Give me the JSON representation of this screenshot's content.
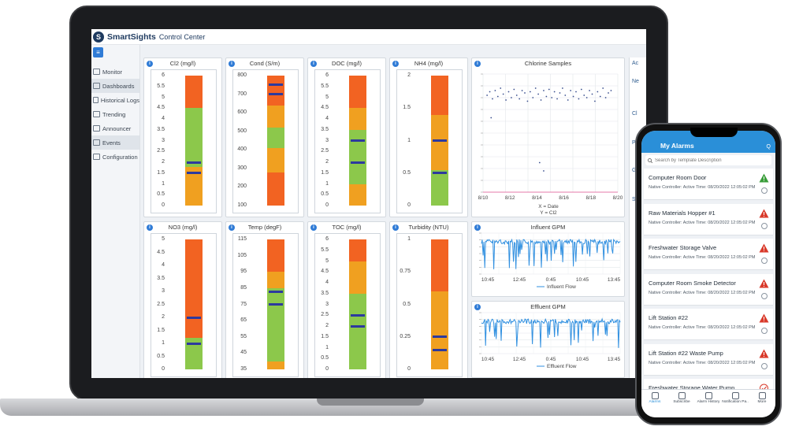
{
  "header": {
    "logo_letter": "S",
    "brand": "SmartSights",
    "title": "Control Center"
  },
  "sidebar": {
    "toggle_icon": "menu-icon",
    "items": [
      {
        "label": "Monitor",
        "active": false
      },
      {
        "label": "Dashboards",
        "active": true
      },
      {
        "label": "Historical Logs",
        "active": false
      },
      {
        "label": "Trending",
        "active": false
      },
      {
        "label": "Announcer",
        "active": false
      },
      {
        "label": "Events",
        "active": true
      },
      {
        "label": "Configuration",
        "active": false
      }
    ]
  },
  "gauges": [
    {
      "title": "Cl2 (mg/l)",
      "ticks": [
        "6",
        "5.5",
        "5",
        "4.5",
        "4",
        "3.5",
        "3",
        "2.5",
        "2",
        "1.5",
        "1",
        "0.5",
        "0"
      ],
      "min": 0,
      "max": 6,
      "segments": [
        {
          "from": 0,
          "to": 1.8,
          "color": "#f0a020"
        },
        {
          "from": 1.8,
          "to": 4.5,
          "color": "#8cc84b"
        },
        {
          "from": 4.5,
          "to": 6,
          "color": "#f26322"
        }
      ],
      "markers": [
        2.0,
        1.5
      ]
    },
    {
      "title": "Cond (S/m)",
      "ticks": [
        "800",
        "700",
        "600",
        "500",
        "400",
        "300",
        "200",
        "100"
      ],
      "min": 100,
      "max": 800,
      "segments": [
        {
          "from": 100,
          "to": 280,
          "color": "#f26322"
        },
        {
          "from": 280,
          "to": 410,
          "color": "#f0a020"
        },
        {
          "from": 410,
          "to": 520,
          "color": "#8cc84b"
        },
        {
          "from": 520,
          "to": 640,
          "color": "#f0a020"
        },
        {
          "from": 640,
          "to": 800,
          "color": "#f26322"
        }
      ],
      "markers": [
        750,
        700
      ]
    },
    {
      "title": "DOC (mg/l)",
      "ticks": [
        "6",
        "5.5",
        "5",
        "4.5",
        "4",
        "3.5",
        "3",
        "2.5",
        "2",
        "1.5",
        "1",
        "0.5",
        "0"
      ],
      "min": 0,
      "max": 6,
      "segments": [
        {
          "from": 0,
          "to": 1.0,
          "color": "#f0a020"
        },
        {
          "from": 1.0,
          "to": 3.5,
          "color": "#8cc84b"
        },
        {
          "from": 3.5,
          "to": 4.5,
          "color": "#f0a020"
        },
        {
          "from": 4.5,
          "to": 6,
          "color": "#f26322"
        }
      ],
      "markers": [
        3.0,
        2.0
      ]
    },
    {
      "title": "NH4 (mg/l)",
      "ticks": [
        "2",
        "1.5",
        "1",
        "0.5",
        "0"
      ],
      "min": 0,
      "max": 2,
      "segments": [
        {
          "from": 0,
          "to": 0.55,
          "color": "#8cc84b"
        },
        {
          "from": 0.55,
          "to": 0.95,
          "color": "#f0a020"
        },
        {
          "from": 0.95,
          "to": 1.4,
          "color": "#f0a020"
        },
        {
          "from": 1.4,
          "to": 2,
          "color": "#f26322"
        }
      ],
      "markers": [
        1.0,
        0.5
      ]
    },
    {
      "title": "NO3 (mg/l)",
      "ticks": [
        "5",
        "4.5",
        "4",
        "3.5",
        "3",
        "2.5",
        "2",
        "1.5",
        "1",
        "0.5",
        "0"
      ],
      "min": 0,
      "max": 5,
      "segments": [
        {
          "from": 0,
          "to": 1.2,
          "color": "#8cc84b"
        },
        {
          "from": 1.2,
          "to": 5,
          "color": "#f26322"
        }
      ],
      "markers": [
        2.0,
        1.0
      ]
    },
    {
      "title": "Temp (degF)",
      "ticks": [
        "115",
        "105",
        "95",
        "85",
        "75",
        "65",
        "55",
        "45",
        "35"
      ],
      "min": 35,
      "max": 115,
      "segments": [
        {
          "from": 35,
          "to": 40,
          "color": "#f0a020"
        },
        {
          "from": 40,
          "to": 85,
          "color": "#8cc84b"
        },
        {
          "from": 85,
          "to": 95,
          "color": "#f0a020"
        },
        {
          "from": 95,
          "to": 115,
          "color": "#f26322"
        }
      ],
      "markers": [
        83,
        75
      ]
    },
    {
      "title": "TOC (mg/l)",
      "ticks": [
        "6",
        "5.5",
        "5",
        "4.5",
        "4",
        "3.5",
        "3",
        "2.5",
        "2",
        "1.5",
        "1",
        "0.5",
        "0"
      ],
      "min": 0,
      "max": 6,
      "segments": [
        {
          "from": 0,
          "to": 3.5,
          "color": "#8cc84b"
        },
        {
          "from": 3.5,
          "to": 5,
          "color": "#f0a020"
        },
        {
          "from": 5,
          "to": 6,
          "color": "#f26322"
        }
      ],
      "markers": [
        2.5,
        2.0
      ]
    },
    {
      "title": "Turbidity (NTU)",
      "ticks": [
        "1",
        "0.75",
        "0.5",
        "0.25",
        "0"
      ],
      "min": 0,
      "max": 1,
      "segments": [
        {
          "from": 0,
          "to": 0.45,
          "color": "#f0a020"
        },
        {
          "from": 0.45,
          "to": 0.6,
          "color": "#f0a020"
        },
        {
          "from": 0.6,
          "to": 1,
          "color": "#f26322"
        }
      ],
      "markers": [
        0.25,
        0.15
      ]
    }
  ],
  "charts": {
    "scatter": {
      "title": "Chlorine Samples",
      "x_ticks": [
        "8/10",
        "8/12",
        "8/14",
        "8/16",
        "8/18",
        "8/20"
      ],
      "legend_x": "X = Date",
      "legend_y": "Y = Cl2",
      "xlim": [
        0,
        10
      ],
      "ylim": [
        0,
        10
      ],
      "points": [
        [
          0.3,
          8.2
        ],
        [
          0.5,
          8.5
        ],
        [
          0.7,
          7.9
        ],
        [
          0.9,
          8.6
        ],
        [
          1.1,
          8.1
        ],
        [
          1.3,
          8.8
        ],
        [
          1.5,
          8.3
        ],
        [
          1.7,
          7.8
        ],
        [
          1.9,
          8.5
        ],
        [
          2.1,
          8.0
        ],
        [
          2.3,
          8.7
        ],
        [
          2.5,
          8.2
        ],
        [
          2.7,
          7.9
        ],
        [
          2.9,
          8.6
        ],
        [
          3.1,
          8.4
        ],
        [
          3.3,
          7.7
        ],
        [
          3.5,
          8.5
        ],
        [
          3.7,
          8.0
        ],
        [
          3.9,
          8.8
        ],
        [
          4.1,
          8.3
        ],
        [
          4.3,
          7.8
        ],
        [
          4.5,
          8.6
        ],
        [
          4.7,
          8.1
        ],
        [
          4.9,
          8.7
        ],
        [
          5.1,
          8.0
        ],
        [
          5.3,
          8.5
        ],
        [
          5.5,
          7.9
        ],
        [
          5.7,
          8.4
        ],
        [
          5.9,
          8.8
        ],
        [
          6.1,
          8.2
        ],
        [
          6.3,
          7.8
        ],
        [
          6.5,
          8.6
        ],
        [
          6.7,
          8.1
        ],
        [
          6.9,
          8.5
        ],
        [
          7.1,
          7.9
        ],
        [
          7.3,
          8.7
        ],
        [
          7.5,
          8.2
        ],
        [
          7.7,
          8.0
        ],
        [
          7.9,
          8.6
        ],
        [
          8.1,
          8.3
        ],
        [
          8.3,
          7.7
        ],
        [
          8.5,
          8.5
        ],
        [
          8.7,
          8.1
        ],
        [
          8.9,
          8.8
        ],
        [
          9.1,
          8.0
        ],
        [
          9.3,
          8.4
        ],
        [
          9.5,
          8.6
        ],
        [
          0.6,
          6.3
        ],
        [
          4.2,
          2.5
        ],
        [
          4.5,
          1.8
        ]
      ]
    },
    "influent": {
      "title": "Influent GPM",
      "x_ticks": [
        "10:45",
        "12:45",
        "0:45",
        "10:45",
        "13:45"
      ],
      "legend": "Influent Flow"
    },
    "effluent": {
      "title": "Effluent GPM",
      "x_ticks": [
        "10:45",
        "12:45",
        "0:45",
        "10:45",
        "13:45"
      ],
      "legend": "Effluent Flow"
    }
  },
  "side_panel": {
    "labels": [
      "Ac",
      "Ne",
      "Cl",
      "Pe",
      "Gl",
      "Sl"
    ]
  },
  "phone": {
    "title": "My Alarms",
    "header_icons": "Q",
    "search_placeholder": "Search by Template Description",
    "alarms": [
      {
        "name": "Computer Room Door",
        "sub": "Native Controller: Active Time: 08/20/2022 12:05:02 PM",
        "severity": "warning"
      },
      {
        "name": "Raw Materials Hopper #1",
        "sub": "Native Controller: Active Time: 08/20/2022 12:05:02 PM",
        "severity": "critical"
      },
      {
        "name": "Freshwater Storage Valve",
        "sub": "Native Controller: Active Time: 08/20/2022 12:05:02 PM",
        "severity": "critical"
      },
      {
        "name": "Computer Room Smoke Detector",
        "sub": "Native Controller: Active Time: 08/20/2022 12:05:02 PM",
        "severity": "critical"
      },
      {
        "name": "Lift Station #22",
        "sub": "Native Controller: Active Time: 08/20/2022 12:05:02 PM",
        "severity": "critical"
      },
      {
        "name": "Lift Station #22 Waste Pump",
        "sub": "Native Controller: Active Time: 08/20/2022 12:05:02 PM",
        "severity": "critical"
      },
      {
        "name": "Freshwater Storage Water Pump",
        "sub": "",
        "severity": "ok"
      }
    ],
    "tabs": [
      {
        "label": "Alarms",
        "active": true
      },
      {
        "label": "Subscribe",
        "active": false
      },
      {
        "label": "Alarm History",
        "active": false
      },
      {
        "label": "Notification Pa..",
        "active": false
      },
      {
        "label": "More",
        "active": false
      }
    ]
  },
  "colors": {
    "accent": "#2f7bd6",
    "phone_header": "#2a8fd8",
    "warning": "#3a9d3a",
    "critical": "#d93a2b",
    "ok": "#d93a2b",
    "marker": "#2d3a9e",
    "line": "#2f8fe0"
  }
}
